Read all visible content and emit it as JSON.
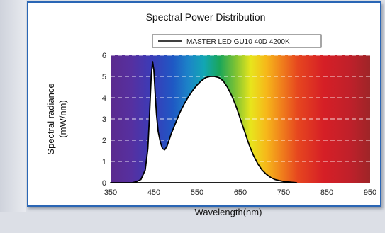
{
  "chart_data": {
    "type": "area",
    "title": "Spectral Power Distribution",
    "xlabel": "Wavelength(nm)",
    "ylabel_line1": "Spectral radiance",
    "ylabel_line2": "(mW/nm)",
    "xlim": [
      350,
      950
    ],
    "ylim": [
      0,
      6
    ],
    "xticks": [
      "350",
      "450",
      "550",
      "650",
      "750",
      "850",
      "950"
    ],
    "yticks": [
      "0",
      "1",
      "2",
      "3",
      "4",
      "5",
      "6"
    ],
    "grid": "horizontal dashed",
    "legend_position": "top-center",
    "series": [
      {
        "name": "MASTER LED GU10  40D 4200K",
        "x": [
          350,
          400,
          410,
          420,
          430,
          436,
          440,
          444,
          447,
          450,
          453,
          456,
          460,
          465,
          470,
          475,
          480,
          485,
          490,
          500,
          510,
          520,
          530,
          540,
          550,
          560,
          570,
          580,
          590,
          600,
          610,
          620,
          630,
          640,
          650,
          660,
          670,
          680,
          690,
          700,
          710,
          720,
          730,
          740,
          750,
          760,
          770,
          775,
          780
        ],
        "y": [
          0,
          0,
          0.05,
          0.15,
          0.6,
          1.6,
          3.2,
          5.0,
          5.7,
          5.3,
          4.2,
          3.2,
          2.4,
          1.9,
          1.6,
          1.55,
          1.7,
          2.0,
          2.3,
          2.8,
          3.3,
          3.7,
          4.05,
          4.35,
          4.6,
          4.8,
          4.95,
          5.0,
          5.0,
          4.95,
          4.8,
          4.5,
          4.1,
          3.6,
          3.0,
          2.4,
          1.8,
          1.3,
          0.9,
          0.6,
          0.4,
          0.25,
          0.15,
          0.1,
          0.06,
          0.04,
          0.02,
          0.01,
          0
        ]
      }
    ]
  },
  "colors": {
    "frame": "#2a66b5",
    "curve": "#000000",
    "area_fill": "#ffffff",
    "grid": "#ffffff"
  }
}
